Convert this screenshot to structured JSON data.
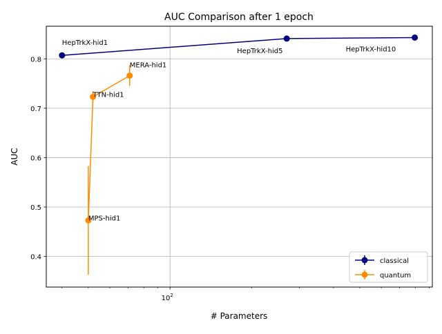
{
  "chart_data": {
    "type": "line",
    "title": "AUC Comparison after 1 epoch",
    "xlabel": "# Parameters",
    "ylabel": "AUC",
    "x_scale": "log",
    "xlim": [
      35,
      925
    ],
    "ylim": [
      0.338,
      0.866
    ],
    "x_tick_labels": [
      {
        "value": 100,
        "label": "10",
        "exp": "2"
      }
    ],
    "y_tick_labels": [
      "0.4",
      "0.5",
      "0.6",
      "0.7",
      "0.8"
    ],
    "y_tick_values": [
      0.4,
      0.5,
      0.6,
      0.7,
      0.8
    ],
    "grid": true,
    "legend_position": "lower-right",
    "series": [
      {
        "name": "classical",
        "color": "#000080",
        "points": [
          {
            "x": 40,
            "y": 0.807,
            "err": 0,
            "label": "HepTrkX-hid1"
          },
          {
            "x": 269,
            "y": 0.841,
            "err": 0,
            "label": "HepTrkX-hid5"
          },
          {
            "x": 797,
            "y": 0.843,
            "err": 0,
            "label": "HepTrkX-hid10"
          }
        ]
      },
      {
        "name": "quantum",
        "color": "#ff8c00",
        "points": [
          {
            "x": 50,
            "y": 0.473,
            "err": 0.11,
            "label": "MPS-hid1"
          },
          {
            "x": 52,
            "y": 0.723,
            "err": 0.012,
            "label": "TTN-hid1"
          },
          {
            "x": 71,
            "y": 0.766,
            "err": 0.021,
            "label": "MERA-hid1"
          }
        ]
      }
    ]
  }
}
